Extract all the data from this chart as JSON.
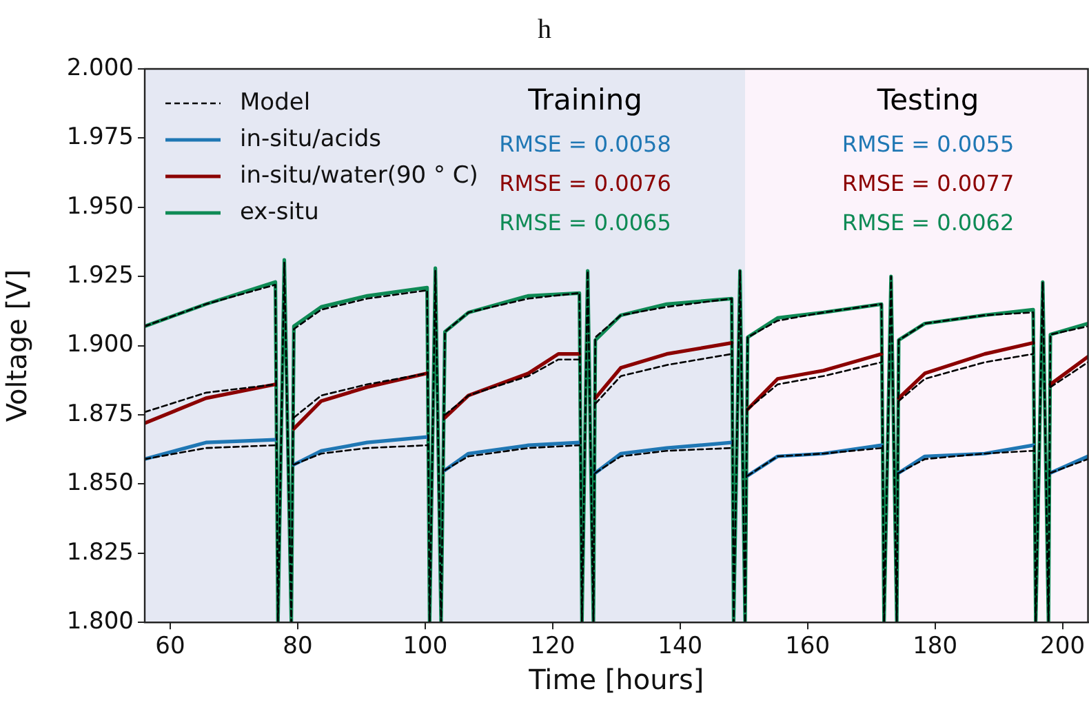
{
  "chart_data": {
    "type": "line",
    "title": "h",
    "xlabel": "Time [hours]",
    "ylabel": "Voltage [V]",
    "xlim": [
      56,
      204
    ],
    "xticks": [
      60,
      80,
      100,
      120,
      140,
      160,
      180,
      200
    ],
    "ylim": [
      1.8,
      2.0
    ],
    "yticks": [
      {
        "value": 1.8,
        "label": "1.800"
      },
      {
        "value": 1.825,
        "label": "1.825"
      },
      {
        "value": 1.85,
        "label": "1.850"
      },
      {
        "value": 1.875,
        "label": "1.875"
      },
      {
        "value": 1.9,
        "label": "1.900"
      },
      {
        "value": 1.925,
        "label": "1.925"
      },
      {
        "value": 1.95,
        "label": "1.950"
      },
      {
        "value": 1.975,
        "label": "1.975"
      },
      {
        "value": 2.0,
        "label": "2.000"
      }
    ],
    "grid": false,
    "legend": "top left",
    "marker": "none",
    "bands": [
      {
        "axis": "x",
        "from": 56,
        "to": 150.2,
        "label": "Training",
        "color": "#e5e8f3"
      },
      {
        "axis": "x",
        "from": 150.2,
        "to": 204,
        "label": "Testing",
        "color": "#fcf3fb"
      }
    ],
    "annotations": [
      "RMSE = 0.0058",
      "RMSE = 0.0076",
      "RMSE = 0.0065",
      "RMSE = 0.0055",
      "RMSE = 0.0077",
      "RMSE = 0.0062"
    ],
    "series": [
      {
        "name": "Model",
        "color": "#000000",
        "line_style": "dashed",
        "x": [
          56,
          65.6,
          76.5,
          76.9,
          77.9,
          79.0,
          79.4,
          83.7,
          90.9,
          100.3,
          100.7,
          101.6,
          102.5,
          103.1,
          106.8,
          116.2,
          124.2,
          124.6,
          125.5,
          126.4,
          126.7,
          130.7,
          137.9,
          148.1,
          148.4,
          149.4,
          150.2,
          150.6,
          155.3,
          162.5,
          171.6,
          172.0,
          173.1,
          174.0,
          174.3,
          178.4,
          187.8,
          195.4,
          195.8,
          196.9,
          197.8,
          198.1,
          204
        ],
        "values": [
          1.907,
          1.915,
          1.922,
          1.8,
          1.93,
          1.8,
          1.906,
          1.913,
          1.917,
          1.92,
          1.8,
          1.927,
          1.8,
          1.905,
          1.912,
          1.917,
          1.919,
          1.8,
          1.927,
          1.8,
          1.903,
          1.911,
          1.914,
          1.917,
          1.8,
          1.927,
          1.8,
          1.903,
          1.909,
          1.912,
          1.915,
          1.8,
          1.925,
          1.8,
          1.902,
          1.908,
          1.911,
          1.912,
          1.8,
          1.923,
          1.8,
          1.904,
          1.907
        ]
      },
      {
        "color": "#000000",
        "line_style": "dashed",
        "x": [
          56,
          65.6,
          76.5,
          77,
          79.4,
          83.7,
          90.9,
          100.3,
          101,
          103.1,
          106.8,
          116.2,
          124.2,
          125,
          126.7,
          130.7,
          137.9,
          148.1,
          149,
          150.6,
          155.3,
          162.5,
          171.6,
          173,
          174.3,
          178.4,
          187.8,
          195.4,
          197,
          198.1,
          204
        ],
        "values": [
          1.859,
          1.863,
          1.864,
          null,
          1.857,
          1.861,
          1.863,
          1.864,
          null,
          1.855,
          1.86,
          1.863,
          1.864,
          null,
          1.854,
          1.86,
          1.862,
          1.863,
          null,
          1.853,
          1.86,
          1.861,
          1.863,
          null,
          1.854,
          1.859,
          1.861,
          1.862,
          null,
          1.854,
          1.859
        ]
      },
      {
        "color": "#000000",
        "line_style": "dashed",
        "x": [
          56,
          65.6,
          76.5,
          77,
          79.4,
          83.7,
          90.9,
          100.3,
          101,
          103.1,
          106.8,
          116.2,
          120.9,
          124.2,
          125,
          126.7,
          130.7,
          137.9,
          148.1,
          149,
          150.6,
          155.3,
          162.5,
          171.6,
          173,
          174.3,
          178.4,
          187.8,
          195.4,
          197,
          198.1,
          204
        ],
        "values": [
          1.876,
          1.883,
          1.886,
          null,
          1.874,
          1.882,
          1.886,
          1.89,
          null,
          1.875,
          1.882,
          1.889,
          1.895,
          1.895,
          null,
          1.879,
          1.889,
          1.893,
          1.897,
          null,
          1.877,
          1.886,
          1.889,
          1.894,
          null,
          1.88,
          1.888,
          1.894,
          1.897,
          null,
          1.885,
          1.894
        ]
      },
      {
        "name": "in-situ/acids",
        "color": "#1f77b4",
        "line_style": "solid",
        "x": [
          56,
          65.6,
          76.5,
          77,
          79.4,
          83.7,
          90.9,
          100.3,
          101,
          103.1,
          106.8,
          116.2,
          124.2,
          125,
          126.7,
          130.7,
          137.9,
          148.1,
          149,
          150.6,
          155.3,
          162.5,
          171.6,
          173,
          174.3,
          178.4,
          187.8,
          195.4,
          197,
          198.1,
          204
        ],
        "values": [
          1.859,
          1.865,
          1.866,
          null,
          1.857,
          1.862,
          1.865,
          1.867,
          null,
          1.855,
          1.861,
          1.864,
          1.865,
          null,
          1.854,
          1.861,
          1.863,
          1.865,
          null,
          1.853,
          1.86,
          1.861,
          1.864,
          null,
          1.854,
          1.86,
          1.861,
          1.864,
          null,
          1.854,
          1.86
        ]
      },
      {
        "name": "in-situ/water(90 ° C)",
        "color": "#8b0000",
        "line_style": "solid",
        "x": [
          56,
          65.6,
          76.5,
          77,
          79.4,
          83.7,
          90.9,
          100.3,
          101,
          103.1,
          106.8,
          116.2,
          120.9,
          124.2,
          125,
          126.7,
          130.7,
          137.9,
          148.1,
          149,
          150.6,
          155.3,
          162.5,
          171.6,
          173,
          174.3,
          178.4,
          187.8,
          195.4,
          197,
          198.1,
          204
        ],
        "values": [
          1.872,
          1.881,
          1.886,
          null,
          1.87,
          1.88,
          1.885,
          1.89,
          null,
          1.874,
          1.882,
          1.89,
          1.897,
          1.897,
          null,
          1.881,
          1.892,
          1.897,
          1.901,
          null,
          1.877,
          1.888,
          1.891,
          1.897,
          null,
          1.881,
          1.89,
          1.897,
          1.901,
          null,
          1.886,
          1.896
        ]
      },
      {
        "name": "ex-situ",
        "color": "#0e8a55",
        "line_style": "solid",
        "x": [
          56,
          65.6,
          76.5,
          76.9,
          77.9,
          79.0,
          79.4,
          83.7,
          90.9,
          100.3,
          100.7,
          101.6,
          102.5,
          103.1,
          106.8,
          116.2,
          124.2,
          124.6,
          125.5,
          126.4,
          126.7,
          130.7,
          137.9,
          148.1,
          148.4,
          149.4,
          150.2,
          150.6,
          155.3,
          162.5,
          171.6,
          172.0,
          173.1,
          174.0,
          174.3,
          178.4,
          187.8,
          195.4,
          195.8,
          196.9,
          197.8,
          198.1,
          204
        ],
        "values": [
          1.907,
          1.915,
          1.923,
          1.8,
          1.931,
          1.8,
          1.907,
          1.914,
          1.918,
          1.921,
          1.8,
          1.928,
          1.8,
          1.905,
          1.912,
          1.918,
          1.919,
          1.8,
          1.927,
          1.8,
          1.902,
          1.911,
          1.915,
          1.917,
          1.8,
          1.927,
          1.8,
          1.903,
          1.91,
          1.912,
          1.915,
          1.8,
          1.925,
          1.8,
          1.902,
          1.908,
          1.911,
          1.913,
          1.8,
          1.923,
          1.8,
          1.904,
          1.908
        ]
      }
    ]
  }
}
